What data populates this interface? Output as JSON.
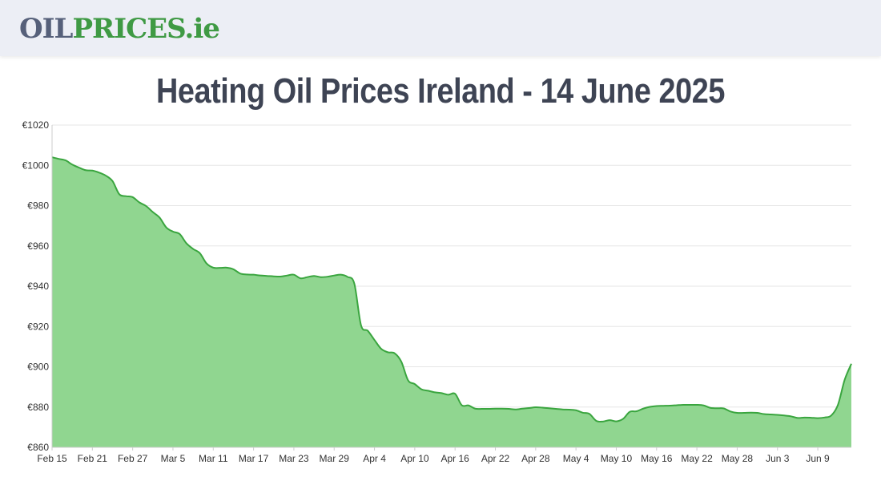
{
  "header": {
    "logo_part_a": "OIL",
    "logo_part_b": "PRICES.ie"
  },
  "page": {
    "title": "Heating Oil Prices Ireland - 14 June 2025"
  },
  "colors": {
    "line": "#3aa53f",
    "fill": "#90d690",
    "grid": "#e6e6e6",
    "axis": "#cccccc"
  },
  "chart_data": {
    "type": "area",
    "title": "",
    "xlabel": "",
    "ylabel": "",
    "ylim": [
      860,
      1020
    ],
    "yticks": [
      "€860",
      "€880",
      "€900",
      "€920",
      "€940",
      "€960",
      "€980",
      "€1000",
      "€1020"
    ],
    "grid": true,
    "legend": "none",
    "x_start": "Feb 15",
    "x_end": "Jun 14",
    "xtick_labels": [
      "Feb 15",
      "Feb 21",
      "Feb 27",
      "Mar 5",
      "Mar 11",
      "Mar 17",
      "Mar 23",
      "Mar 29",
      "Apr 4",
      "Apr 10",
      "Apr 16",
      "Apr 22",
      "Apr 28",
      "May 4",
      "May 10",
      "May 16",
      "May 22",
      "May 28",
      "Jun 3",
      "Jun 9"
    ],
    "x": [
      "Feb 15",
      "Feb 16",
      "Feb 17",
      "Feb 18",
      "Feb 19",
      "Feb 20",
      "Feb 21",
      "Feb 22",
      "Feb 23",
      "Feb 24",
      "Feb 25",
      "Feb 26",
      "Feb 27",
      "Feb 28",
      "Mar 1",
      "Mar 2",
      "Mar 3",
      "Mar 4",
      "Mar 5",
      "Mar 6",
      "Mar 7",
      "Mar 8",
      "Mar 9",
      "Mar 10",
      "Mar 11",
      "Mar 12",
      "Mar 13",
      "Mar 14",
      "Mar 15",
      "Mar 16",
      "Mar 17",
      "Mar 18",
      "Mar 19",
      "Mar 20",
      "Mar 21",
      "Mar 22",
      "Mar 23",
      "Mar 24",
      "Mar 25",
      "Mar 26",
      "Mar 27",
      "Mar 28",
      "Mar 29",
      "Mar 30",
      "Mar 31",
      "Apr 1",
      "Apr 2",
      "Apr 3",
      "Apr 4",
      "Apr 5",
      "Apr 6",
      "Apr 7",
      "Apr 8",
      "Apr 9",
      "Apr 10",
      "Apr 11",
      "Apr 12",
      "Apr 13",
      "Apr 14",
      "Apr 15",
      "Apr 16",
      "Apr 17",
      "Apr 18",
      "Apr 19",
      "Apr 20",
      "Apr 21",
      "Apr 22",
      "Apr 23",
      "Apr 24",
      "Apr 25",
      "Apr 26",
      "Apr 27",
      "Apr 28",
      "Apr 29",
      "Apr 30",
      "May 1",
      "May 2",
      "May 3",
      "May 4",
      "May 5",
      "May 6",
      "May 7",
      "May 8",
      "May 9",
      "May 10",
      "May 11",
      "May 12",
      "May 13",
      "May 14",
      "May 15",
      "May 16",
      "May 17",
      "May 18",
      "May 19",
      "May 20",
      "May 21",
      "May 22",
      "May 23",
      "May 24",
      "May 25",
      "May 26",
      "May 27",
      "May 28",
      "May 29",
      "May 30",
      "May 31",
      "Jun 1",
      "Jun 2",
      "Jun 3",
      "Jun 4",
      "Jun 5",
      "Jun 6",
      "Jun 7",
      "Jun 8",
      "Jun 9",
      "Jun 10",
      "Jun 11",
      "Jun 12",
      "Jun 13",
      "Jun 14"
    ],
    "series": [
      {
        "values": [
          1004,
          1003.2,
          1002.5,
          1000.4,
          998.9,
          997.6,
          997.4,
          996.4,
          994.9,
          992.2,
          985.7,
          984.7,
          984.2,
          981.6,
          979.8,
          976.8,
          974.1,
          969.2,
          967.1,
          965.9,
          961.3,
          958.5,
          956.4,
          951.3,
          949.2,
          949.1,
          949.2,
          948.4,
          946.3,
          945.8,
          945.7,
          945.3,
          945.1,
          944.9,
          944.8,
          945.3,
          945.7,
          943.9,
          944.5,
          945.1,
          944.5,
          944.7,
          945.3,
          945.7,
          944.6,
          941.3,
          920.6,
          917.9,
          913.3,
          908.9,
          907.2,
          906.7,
          902.5,
          893.3,
          891.4,
          888.8,
          888.1,
          887.3,
          886.9,
          886.1,
          886.6,
          880.9,
          880.8,
          879.2,
          879.1,
          879.1,
          879.2,
          879.2,
          879.1,
          878.8,
          879.2,
          879.5,
          879.9,
          879.7,
          879.4,
          879.1,
          878.8,
          878.7,
          878.4,
          877.2,
          876.6,
          873.2,
          872.8,
          873.5,
          872.9,
          874.1,
          877.6,
          877.9,
          879.2,
          880.1,
          880.5,
          880.6,
          880.7,
          880.9,
          881.1,
          881.1,
          881.1,
          880.8,
          879.6,
          879.4,
          879.3,
          877.8,
          877.1,
          877.1,
          877.2,
          877.1,
          876.5,
          876.3,
          876.1,
          875.8,
          875.4,
          874.6,
          874.8,
          874.7,
          874.5,
          874.8,
          875.8,
          881.1,
          893.5,
          901.5
        ]
      }
    ]
  }
}
